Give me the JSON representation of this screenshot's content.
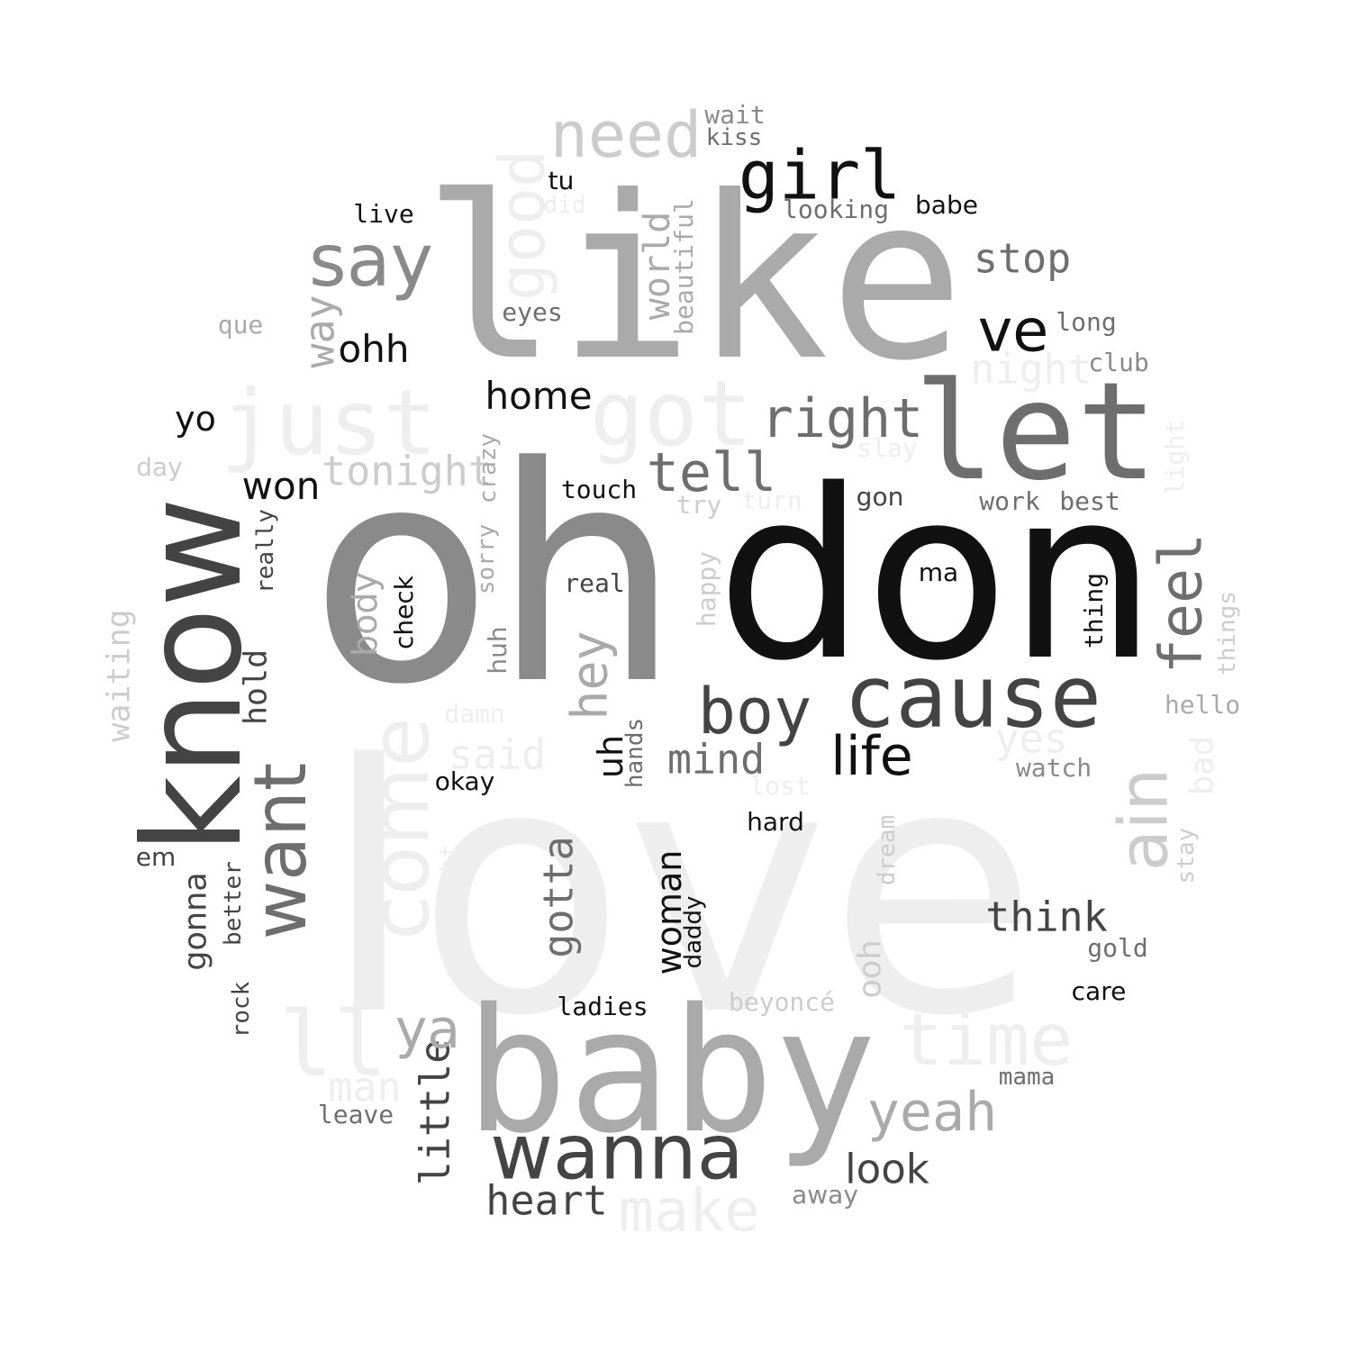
{
  "palette": {
    "black": "#111111",
    "dark_gray": "#444444",
    "mid_gray": "#6e6e6e",
    "gray": "#8a8a8a",
    "silver": "#aaaaaa",
    "light_gray": "#cccccc",
    "pale_gray": "#eeeeee",
    "background": "#ffffff"
  },
  "words": [
    "love",
    "oh",
    "don",
    "like",
    "baby",
    "know",
    "let",
    "cause",
    "got",
    "just",
    "ll",
    "come",
    "time",
    "wanna",
    "want",
    "girl",
    "need",
    "say",
    "good",
    "boy",
    "ve",
    "right",
    "feel",
    "yeah",
    "tell",
    "life",
    "make",
    "ain",
    "heart",
    "mind",
    "hey",
    "gotta",
    "little",
    "night",
    "stop",
    "think",
    "yes",
    "tonight",
    "look",
    "ya",
    "home",
    "said",
    "woman",
    "man",
    "won",
    "ohh",
    "way",
    "world",
    "beautiful",
    "uh",
    "body",
    "yo",
    "waiting",
    "gonna",
    "hold",
    "really",
    "sorry",
    "crazy",
    "touch",
    "try",
    "turn",
    "slay",
    "light",
    "gon",
    "work",
    "best",
    "real",
    "ma",
    "happy",
    "check",
    "thing",
    "things",
    "hello",
    "huh",
    "damn",
    "hands",
    "okay",
    "lost",
    "watch",
    "bad",
    "hard",
    "em",
    "better",
    "dream",
    "thought",
    "ooh",
    "daddy",
    "stay",
    "gold",
    "rock",
    "ladies",
    "beyoncé",
    "care",
    "mama",
    "leave",
    "away",
    "wait",
    "kiss",
    "tu",
    "did",
    "live",
    "looking",
    "babe",
    "eyes",
    "que",
    "long",
    "club",
    "day"
  ]
}
